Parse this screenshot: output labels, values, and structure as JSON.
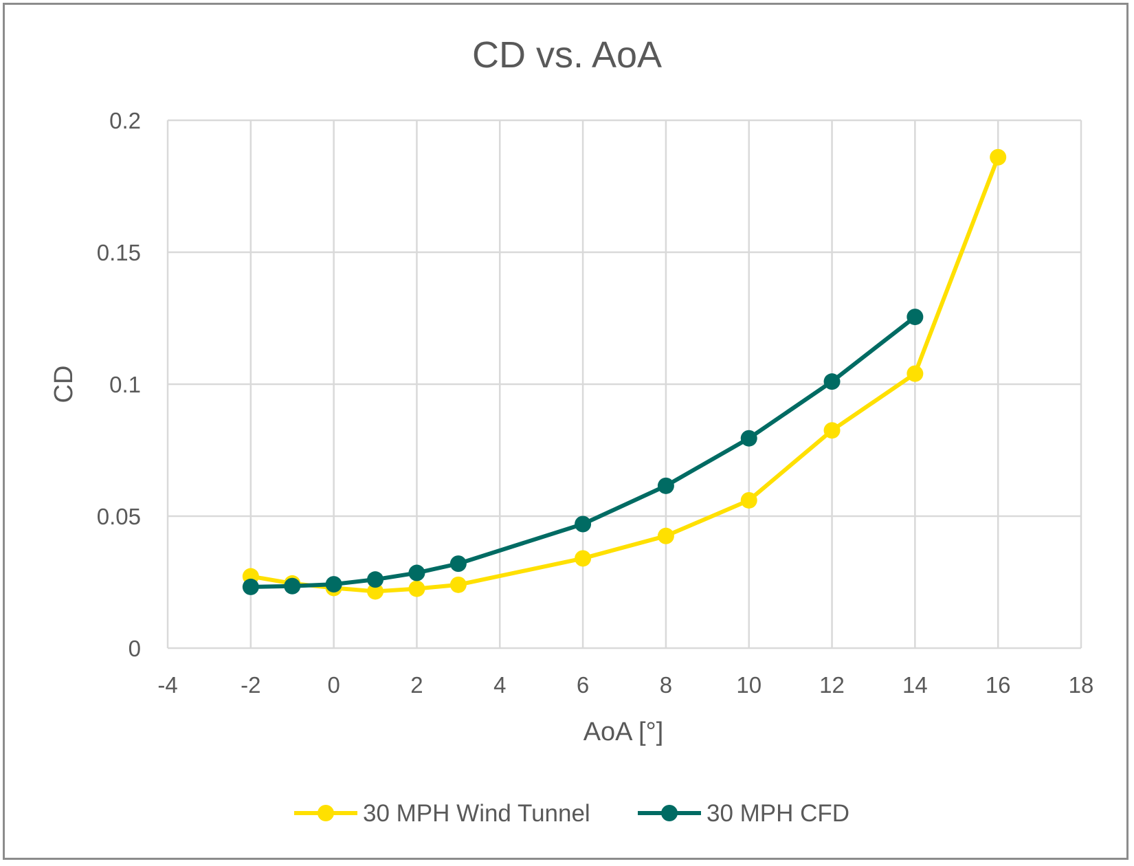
{
  "chart_data": {
    "type": "line",
    "title": "CD vs. AoA",
    "xlabel": "AoA [°]",
    "ylabel": "CD",
    "xlim": [
      -4,
      18
    ],
    "ylim": [
      0,
      0.2
    ],
    "x_ticks": [
      -4,
      -2,
      0,
      2,
      4,
      6,
      8,
      10,
      12,
      14,
      16,
      18
    ],
    "y_ticks": [
      0,
      0.05,
      0.1,
      0.15,
      0.2
    ],
    "x_tick_labels": [
      "-4",
      "-2",
      "0",
      "2",
      "4",
      "6",
      "8",
      "10",
      "12",
      "14",
      "16",
      "18"
    ],
    "y_tick_labels": [
      "0",
      "0.05",
      "0.1",
      "0.15",
      "0.2"
    ],
    "grid": true,
    "legend_position": "bottom",
    "series": [
      {
        "name": "30 MPH Wind Tunnel",
        "color": "#FFE000",
        "x": [
          -2,
          -1,
          0,
          1,
          2,
          3,
          6,
          8,
          10,
          12,
          14,
          16
        ],
        "y": [
          0.0272,
          0.0245,
          0.0228,
          0.0215,
          0.0225,
          0.024,
          0.034,
          0.0425,
          0.056,
          0.0825,
          0.104,
          0.186
        ]
      },
      {
        "name": "30 MPH CFD",
        "color": "#006B63",
        "x": [
          -2,
          -1,
          0,
          1,
          2,
          3,
          6,
          8,
          10,
          12,
          14
        ],
        "y": [
          0.0232,
          0.0235,
          0.0242,
          0.026,
          0.0285,
          0.032,
          0.047,
          0.0615,
          0.0795,
          0.101,
          0.1255
        ]
      }
    ]
  }
}
